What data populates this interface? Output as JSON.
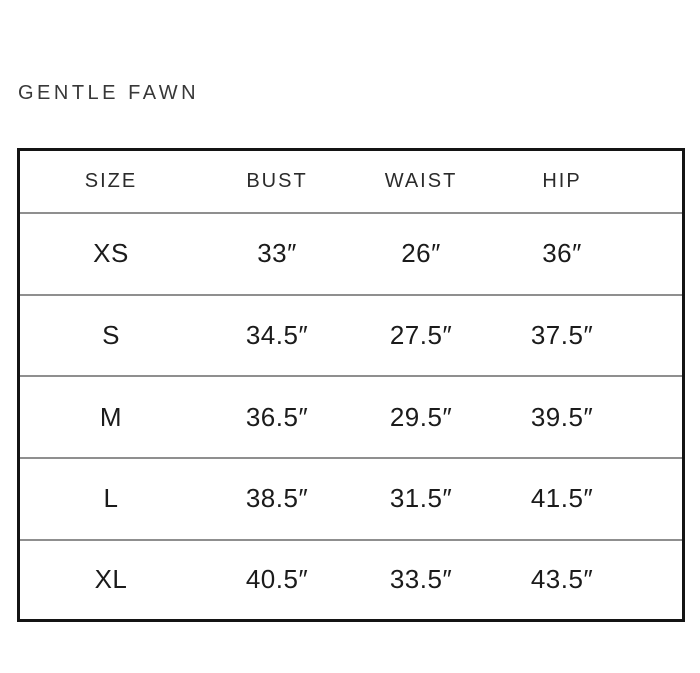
{
  "brand": "GENTLE FAWN",
  "size_chart": {
    "columns": [
      "SIZE",
      "BUST",
      "WAIST",
      "HIP"
    ],
    "rows": [
      [
        "XS",
        "33″",
        "26″",
        "36″"
      ],
      [
        "S",
        "34.5″",
        "27.5″",
        "37.5″"
      ],
      [
        "M",
        "36.5″",
        "29.5″",
        "39.5″"
      ],
      [
        "L",
        "38.5″",
        "31.5″",
        "41.5″"
      ],
      [
        "XL",
        "40.5″",
        "33.5″",
        "43.5″"
      ]
    ],
    "border_color": "#141414",
    "separator_color": "#8f8f8f",
    "text_color": "#1b1b1b"
  },
  "chart_data": {
    "type": "table",
    "title": "GENTLE FAWN",
    "columns": [
      "SIZE",
      "BUST",
      "WAIST",
      "HIP"
    ],
    "rows": [
      [
        "XS",
        "33″",
        "26″",
        "36″"
      ],
      [
        "S",
        "34.5″",
        "27.5″",
        "37.5″"
      ],
      [
        "M",
        "36.5″",
        "29.5″",
        "39.5″"
      ],
      [
        "L",
        "38.5″",
        "31.5″",
        "41.5″"
      ],
      [
        "XL",
        "40.5″",
        "33.5″",
        "43.5″"
      ]
    ],
    "units": "inches",
    "notes": "size chart measurements in inches; grid lines horizontal only"
  }
}
